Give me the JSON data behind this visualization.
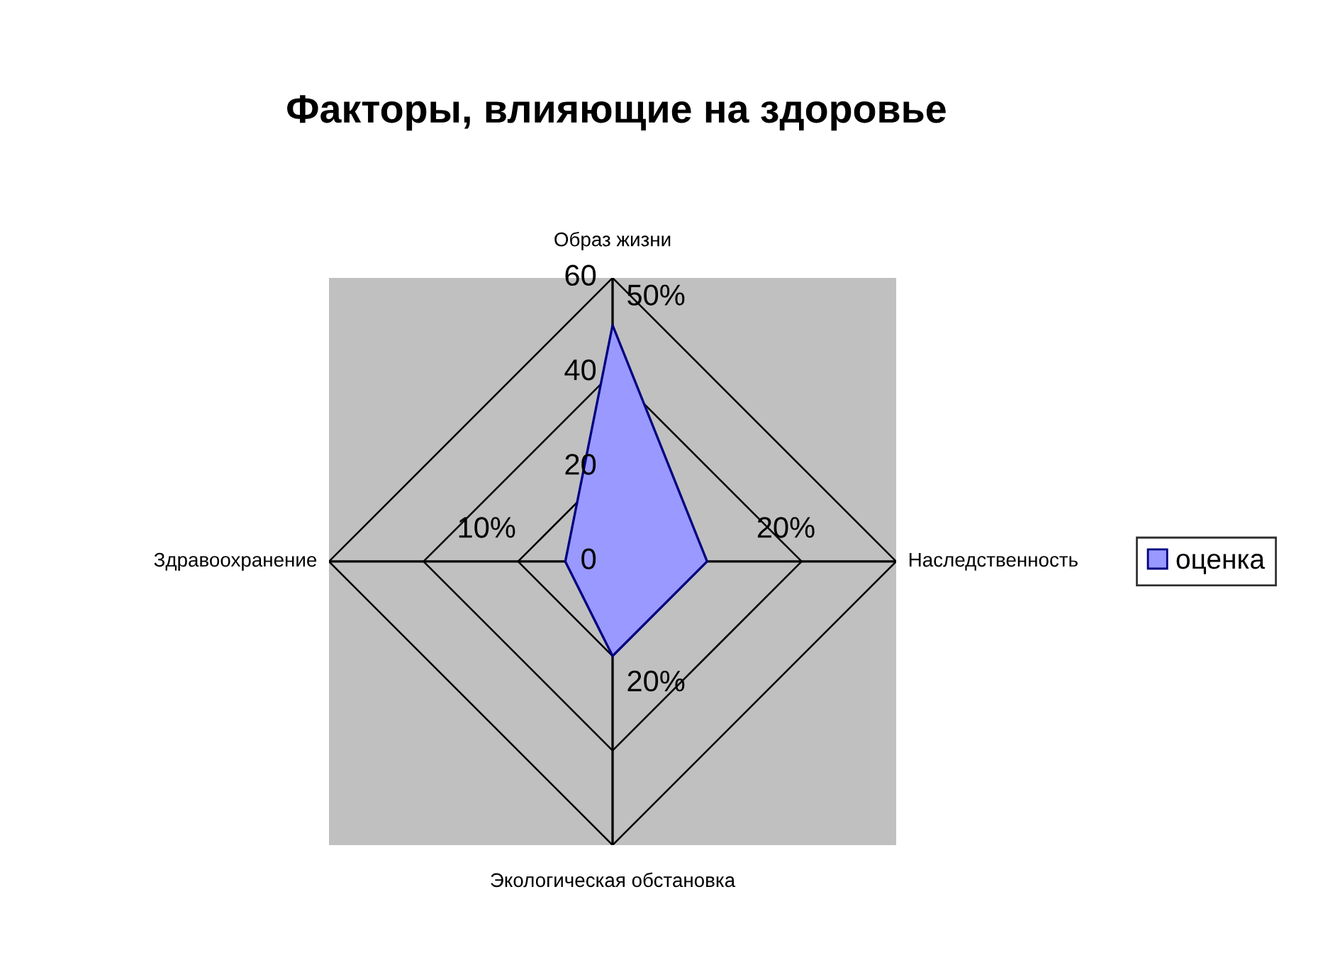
{
  "chart_data": {
    "type": "radar",
    "title": "Факторы, влияющие на здоровье",
    "categories": [
      "Образ жизни",
      "Наследственность",
      "Экологическая обстановка",
      "Здравоохранение"
    ],
    "series": [
      {
        "name": "оценка",
        "color": "#9999ff",
        "values": [
          50,
          20,
          20,
          10
        ],
        "value_labels": [
          "50%",
          "20%",
          "20%",
          "10%"
        ]
      }
    ],
    "ylim": [
      0,
      60
    ],
    "yticks": [
      0,
      20,
      40,
      60
    ],
    "grid": true,
    "legend": "right"
  }
}
